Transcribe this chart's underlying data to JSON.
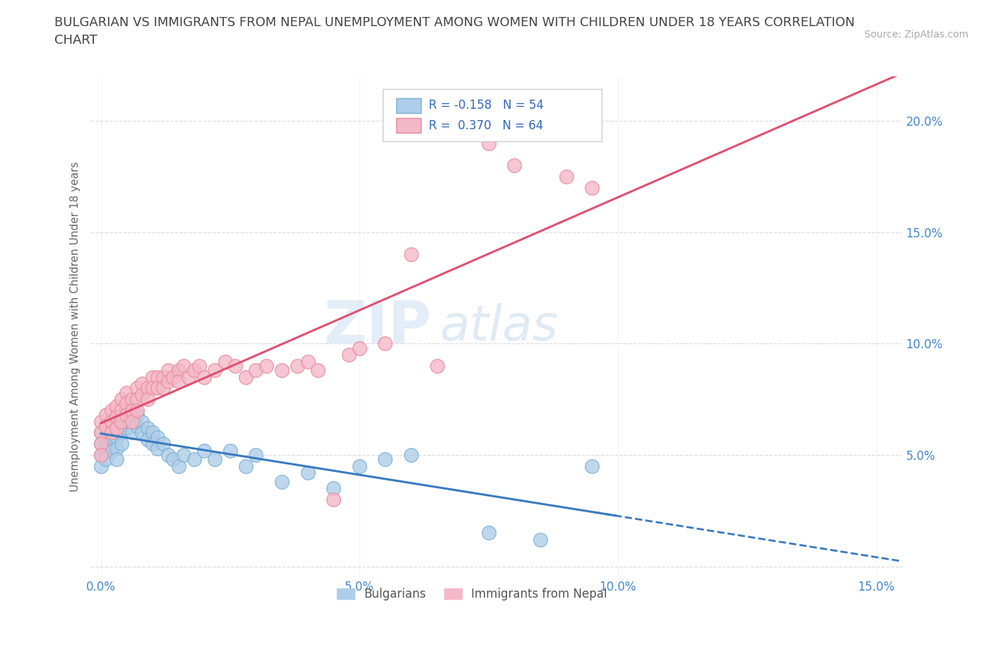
{
  "title": "BULGARIAN VS IMMIGRANTS FROM NEPAL UNEMPLOYMENT AMONG WOMEN WITH CHILDREN UNDER 18 YEARS CORRELATION\nCHART",
  "source": "Source: ZipAtlas.com",
  "ylabel": "Unemployment Among Women with Children Under 18 years",
  "xlim": [
    -0.002,
    0.155
  ],
  "ylim": [
    -0.005,
    0.22
  ],
  "xticks": [
    0.0,
    0.05,
    0.1,
    0.15
  ],
  "xticklabels": [
    "0.0%",
    "5.0%",
    "10.0%",
    "15.0%"
  ],
  "yticks": [
    0.0,
    0.05,
    0.1,
    0.15,
    0.2
  ],
  "yticklabels": [
    "",
    "5.0%",
    "10.0%",
    "15.0%",
    "20.0%"
  ],
  "bulgarian_color": "#aecde8",
  "nepal_color": "#f4b8c8",
  "bulgarian_edge": "#7aafd4",
  "nepal_edge": "#e8899a",
  "trend_blue": "#3a7abf",
  "trend_pink": "#e05070",
  "R_bulgarian": -0.158,
  "N_bulgarian": 54,
  "R_nepal": 0.37,
  "N_nepal": 64,
  "legend_label1": "Bulgarians",
  "legend_label2": "Immigrants from Nepal",
  "watermark_zip": "ZIP",
  "watermark_atlas": "atlas",
  "background_color": "#ffffff",
  "grid_color": "#d8d8d8",
  "title_color": "#444444",
  "axis_label_color": "#666666",
  "tick_color": "#4488cc",
  "bulgarian_x": [
    0.0,
    0.0,
    0.0,
    0.0,
    0.001,
    0.001,
    0.001,
    0.002,
    0.002,
    0.002,
    0.003,
    0.003,
    0.003,
    0.003,
    0.003,
    0.004,
    0.004,
    0.004,
    0.005,
    0.005,
    0.005,
    0.006,
    0.006,
    0.006,
    0.007,
    0.007,
    0.008,
    0.008,
    0.009,
    0.009,
    0.01,
    0.01,
    0.011,
    0.011,
    0.012,
    0.013,
    0.014,
    0.015,
    0.016,
    0.018,
    0.02,
    0.022,
    0.025,
    0.028,
    0.03,
    0.035,
    0.04,
    0.045,
    0.05,
    0.055,
    0.06,
    0.075,
    0.085,
    0.095
  ],
  "bulgarian_y": [
    0.06,
    0.055,
    0.05,
    0.045,
    0.058,
    0.053,
    0.048,
    0.062,
    0.057,
    0.052,
    0.068,
    0.063,
    0.058,
    0.053,
    0.048,
    0.065,
    0.06,
    0.055,
    0.072,
    0.067,
    0.062,
    0.07,
    0.065,
    0.06,
    0.068,
    0.063,
    0.065,
    0.06,
    0.062,
    0.057,
    0.06,
    0.055,
    0.058,
    0.053,
    0.055,
    0.05,
    0.048,
    0.045,
    0.05,
    0.048,
    0.052,
    0.048,
    0.052,
    0.045,
    0.05,
    0.038,
    0.042,
    0.035,
    0.045,
    0.048,
    0.05,
    0.015,
    0.012,
    0.045
  ],
  "nepal_x": [
    0.0,
    0.0,
    0.0,
    0.0,
    0.001,
    0.001,
    0.002,
    0.002,
    0.002,
    0.003,
    0.003,
    0.003,
    0.004,
    0.004,
    0.004,
    0.005,
    0.005,
    0.005,
    0.006,
    0.006,
    0.006,
    0.007,
    0.007,
    0.007,
    0.008,
    0.008,
    0.009,
    0.009,
    0.01,
    0.01,
    0.011,
    0.011,
    0.012,
    0.012,
    0.013,
    0.013,
    0.014,
    0.015,
    0.015,
    0.016,
    0.017,
    0.018,
    0.019,
    0.02,
    0.022,
    0.024,
    0.026,
    0.028,
    0.03,
    0.032,
    0.035,
    0.038,
    0.04,
    0.042,
    0.045,
    0.048,
    0.05,
    0.055,
    0.06,
    0.065,
    0.075,
    0.08,
    0.09,
    0.095
  ],
  "nepal_y": [
    0.065,
    0.06,
    0.055,
    0.05,
    0.068,
    0.063,
    0.07,
    0.065,
    0.06,
    0.072,
    0.067,
    0.062,
    0.075,
    0.07,
    0.065,
    0.078,
    0.073,
    0.068,
    0.075,
    0.07,
    0.065,
    0.08,
    0.075,
    0.07,
    0.082,
    0.077,
    0.08,
    0.075,
    0.085,
    0.08,
    0.085,
    0.08,
    0.085,
    0.08,
    0.088,
    0.083,
    0.085,
    0.088,
    0.083,
    0.09,
    0.085,
    0.088,
    0.09,
    0.085,
    0.088,
    0.092,
    0.09,
    0.085,
    0.088,
    0.09,
    0.088,
    0.09,
    0.092,
    0.088,
    0.03,
    0.095,
    0.098,
    0.1,
    0.14,
    0.09,
    0.19,
    0.18,
    0.175,
    0.17
  ]
}
